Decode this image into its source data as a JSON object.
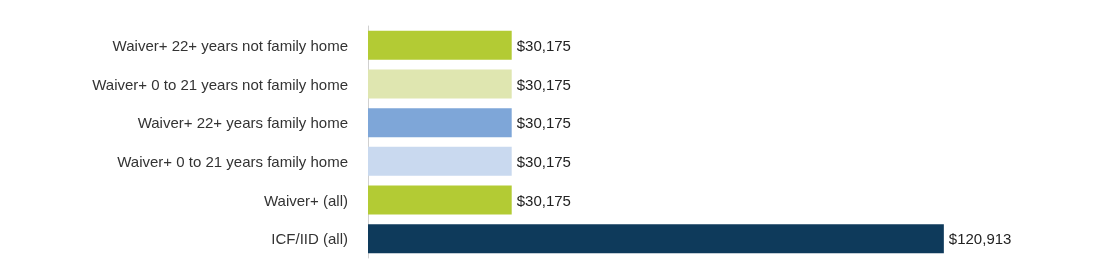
{
  "chart_data": {
    "type": "bar",
    "orientation": "horizontal",
    "categories": [
      "Waiver+ 22+ years not family home",
      "Waiver+ 0 to 21 years not family home",
      "Waiver+ 22+ years family home",
      "Waiver+ 0 to 21 years family home",
      "Waiver+ (all)",
      "ICF/IID (all)"
    ],
    "values": [
      30175,
      30175,
      30175,
      30175,
      30175,
      120913
    ],
    "colors": [
      "#b3cb34",
      "#dfe6b0",
      "#7ea6d8",
      "#c9d9ef",
      "#b3cb34",
      "#0e3a5b"
    ],
    "value_labels": [
      "$30,175",
      "$30,175",
      "$30,175",
      "$30,175",
      "$30,175",
      "$120,913"
    ],
    "grid": false
  }
}
